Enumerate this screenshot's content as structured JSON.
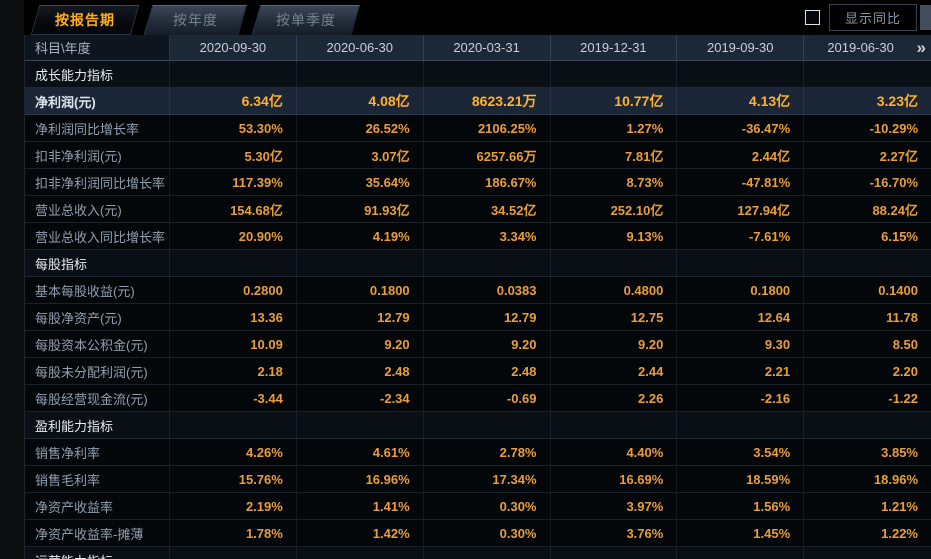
{
  "tabs": [
    {
      "label": "按报告期",
      "active": true
    },
    {
      "label": "按年度",
      "active": false
    },
    {
      "label": "按单季度",
      "active": false
    }
  ],
  "controls": {
    "show_yoy_label": "显示同比",
    "show_yoy_checked": false
  },
  "table": {
    "corner_label": "科目\\年度",
    "columns": [
      "2020-09-30",
      "2020-06-30",
      "2020-03-31",
      "2019-12-31",
      "2019-09-30",
      "2019-06-30"
    ],
    "more_icon": "»",
    "rows": [
      {
        "type": "section",
        "label": "成长能力指标"
      },
      {
        "type": "data",
        "label": "净利润(元)",
        "highlight": true,
        "values": [
          "6.34亿",
          "4.08亿",
          "8623.21万",
          "10.77亿",
          "4.13亿",
          "3.23亿"
        ]
      },
      {
        "type": "data",
        "label": "净利润同比增长率",
        "values": [
          "53.30%",
          "26.52%",
          "2106.25%",
          "1.27%",
          "-36.47%",
          "-10.29%"
        ]
      },
      {
        "type": "data",
        "label": "扣非净利润(元)",
        "values": [
          "5.30亿",
          "3.07亿",
          "6257.66万",
          "7.81亿",
          "2.44亿",
          "2.27亿"
        ]
      },
      {
        "type": "data",
        "label": "扣非净利润同比增长率",
        "values": [
          "117.39%",
          "35.64%",
          "186.67%",
          "8.73%",
          "-47.81%",
          "-16.70%"
        ]
      },
      {
        "type": "data",
        "label": "营业总收入(元)",
        "values": [
          "154.68亿",
          "91.93亿",
          "34.52亿",
          "252.10亿",
          "127.94亿",
          "88.24亿"
        ]
      },
      {
        "type": "data",
        "label": "营业总收入同比增长率",
        "values": [
          "20.90%",
          "4.19%",
          "3.34%",
          "9.13%",
          "-7.61%",
          "6.15%"
        ]
      },
      {
        "type": "section",
        "label": "每股指标"
      },
      {
        "type": "data",
        "label": "基本每股收益(元)",
        "values": [
          "0.2800",
          "0.1800",
          "0.0383",
          "0.4800",
          "0.1800",
          "0.1400"
        ]
      },
      {
        "type": "data",
        "label": "每股净资产(元)",
        "values": [
          "13.36",
          "12.79",
          "12.79",
          "12.75",
          "12.64",
          "11.78"
        ]
      },
      {
        "type": "data",
        "label": "每股资本公积金(元)",
        "values": [
          "10.09",
          "9.20",
          "9.20",
          "9.20",
          "9.30",
          "8.50"
        ]
      },
      {
        "type": "data",
        "label": "每股未分配利润(元)",
        "values": [
          "2.18",
          "2.48",
          "2.48",
          "2.44",
          "2.21",
          "2.20"
        ]
      },
      {
        "type": "data",
        "label": "每股经营现金流(元)",
        "values": [
          "-3.44",
          "-2.34",
          "-0.69",
          "2.26",
          "-2.16",
          "-1.22"
        ]
      },
      {
        "type": "section",
        "label": "盈利能力指标"
      },
      {
        "type": "data",
        "label": "销售净利率",
        "values": [
          "4.26%",
          "4.61%",
          "2.78%",
          "4.40%",
          "3.54%",
          "3.85%"
        ]
      },
      {
        "type": "data",
        "label": "销售毛利率",
        "values": [
          "15.76%",
          "16.96%",
          "17.34%",
          "16.69%",
          "18.59%",
          "18.96%"
        ]
      },
      {
        "type": "data",
        "label": "净资产收益率",
        "values": [
          "2.19%",
          "1.41%",
          "0.30%",
          "3.97%",
          "1.56%",
          "1.21%"
        ]
      },
      {
        "type": "data",
        "label": "净资产收益率-摊薄",
        "values": [
          "1.78%",
          "1.42%",
          "0.30%",
          "3.76%",
          "1.45%",
          "1.22%"
        ]
      },
      {
        "type": "section",
        "label": "运营能力指标"
      }
    ]
  },
  "colors": {
    "background": "#000000",
    "header_row_bg": "#1d2836",
    "highlight_row_bg": "#1b2736",
    "value_orange": "#e99d3b",
    "highlight_orange": "#ffb12f",
    "tab_active_orange": "#ffae17",
    "label_gray": "#939fae",
    "grid_line": "#3a475a"
  }
}
